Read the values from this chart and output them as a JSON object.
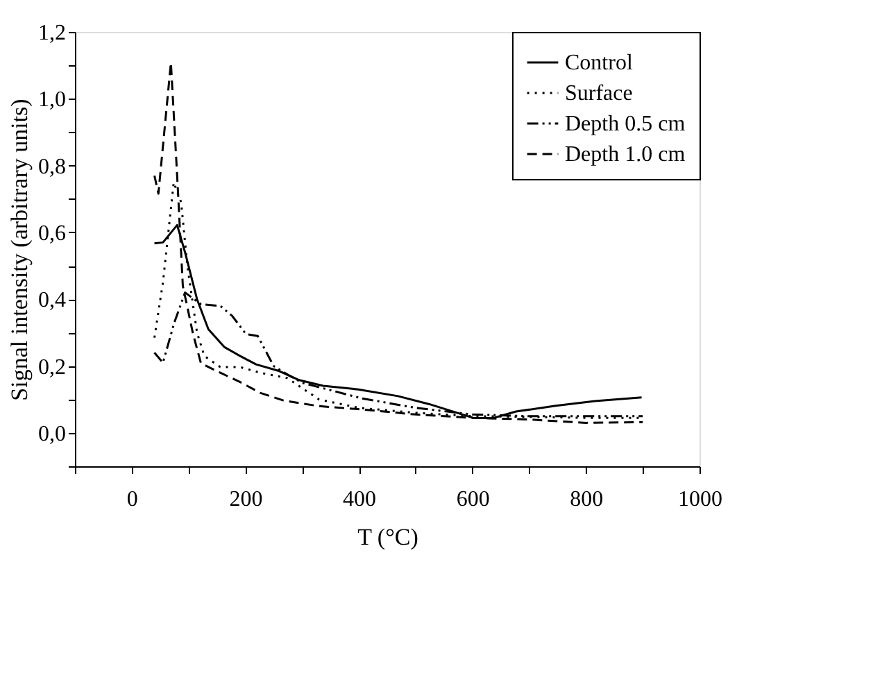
{
  "chart_data": {
    "type": "line",
    "xlabel": "T (°C)",
    "ylabel": "Signal intensity (arbitrary units)",
    "xlim": [
      -100,
      1000
    ],
    "ylim": [
      -0.1,
      1.2
    ],
    "xticks": [
      {
        "value": -100,
        "label": null
      },
      {
        "value": 0,
        "label": "0"
      },
      {
        "value": 100,
        "label": null
      },
      {
        "value": 200,
        "label": "200"
      },
      {
        "value": 300,
        "label": null
      },
      {
        "value": 400,
        "label": "400"
      },
      {
        "value": 500,
        "label": null
      },
      {
        "value": 600,
        "label": "600"
      },
      {
        "value": 700,
        "label": null
      },
      {
        "value": 800,
        "label": "800"
      },
      {
        "value": 900,
        "label": null
      },
      {
        "value": 1000,
        "label": "1000"
      }
    ],
    "yticks": [
      {
        "value": -0.1,
        "label": null
      },
      {
        "value": 0,
        "label": "0,0"
      },
      {
        "value": 0.1,
        "label": null
      },
      {
        "value": 0.2,
        "label": "0,2"
      },
      {
        "value": 0.3,
        "label": null
      },
      {
        "value": 0.4,
        "label": "0,4"
      },
      {
        "value": 0.5,
        "label": null
      },
      {
        "value": 0.6,
        "label": "0,6"
      },
      {
        "value": 0.7,
        "label": null
      },
      {
        "value": 0.8,
        "label": "0,8"
      },
      {
        "value": 0.9,
        "label": null
      },
      {
        "value": 1.0,
        "label": "1,0"
      },
      {
        "value": 1.1,
        "label": null
      },
      {
        "value": 1.2,
        "label": "1,2"
      }
    ],
    "grid": false,
    "legend": "top right",
    "marker": "none",
    "series": [
      {
        "name": "Control",
        "color": "#000000",
        "line_style": "solid",
        "x": [
          40,
          55,
          80,
          94,
          115,
          135,
          163,
          191,
          219,
          260,
          295,
          337,
          399,
          469,
          524,
          601,
          636,
          677,
          747,
          816,
          898
        ],
        "values": [
          0.567,
          0.57,
          0.622,
          0.54,
          0.4,
          0.31,
          0.257,
          0.23,
          0.205,
          0.185,
          0.158,
          0.141,
          0.13,
          0.11,
          0.086,
          0.045,
          0.044,
          0.064,
          0.081,
          0.095,
          0.106
        ]
      },
      {
        "name": "Surface",
        "color": "#000000",
        "line_style": "dotted",
        "x": [
          40,
          55,
          74,
          87,
          98,
          115,
          128,
          156,
          191,
          226,
          274,
          330,
          400,
          500,
          600,
          700,
          800,
          900
        ],
        "values": [
          0.285,
          0.45,
          0.75,
          0.69,
          0.5,
          0.3,
          0.23,
          0.197,
          0.197,
          0.18,
          0.164,
          0.1,
          0.075,
          0.06,
          0.05,
          0.048,
          0.045,
          0.045
        ]
      },
      {
        "name": "Depth 0.5 cm",
        "color": "#000000",
        "line_style": "dashdot",
        "x": [
          40,
          55,
          75,
          94,
          122,
          156,
          177,
          201,
          222,
          250,
          274,
          300,
          406,
          500,
          600,
          700,
          800,
          900
        ],
        "values": [
          0.24,
          0.21,
          0.33,
          0.42,
          0.385,
          0.38,
          0.35,
          0.296,
          0.29,
          0.2,
          0.175,
          0.15,
          0.103,
          0.075,
          0.055,
          0.05,
          0.05,
          0.05
        ]
      },
      {
        "name": "Depth 1.0 cm",
        "color": "#000000",
        "line_style": "dashed",
        "x": [
          40,
          47,
          69,
          80,
          90,
          108,
          122,
          156,
          191,
          226,
          267,
          330,
          406,
          500,
          600,
          700,
          800,
          900
        ],
        "values": [
          0.77,
          0.716,
          1.108,
          0.77,
          0.44,
          0.296,
          0.208,
          0.18,
          0.152,
          0.12,
          0.097,
          0.08,
          0.07,
          0.055,
          0.045,
          0.04,
          0.03,
          0.032
        ]
      }
    ]
  }
}
